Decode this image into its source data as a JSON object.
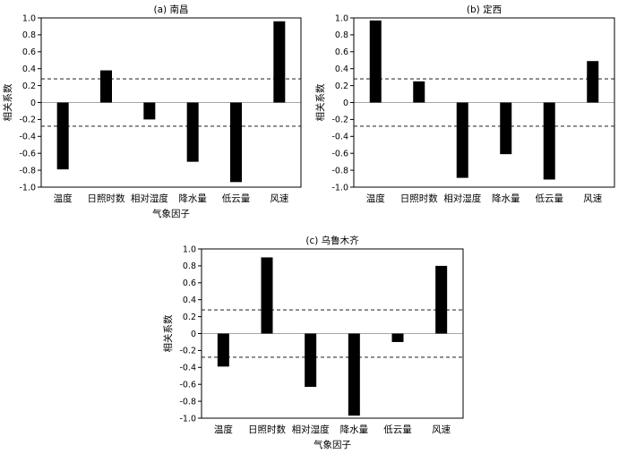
{
  "chart_data": [
    {
      "type": "bar",
      "title": "(a) 南昌",
      "xlabel": "气象因子",
      "ylabel": "相关系数",
      "categories": [
        "温度",
        "日照时数",
        "相对湿度",
        "降水量",
        "低云量",
        "风速"
      ],
      "values": [
        -0.79,
        0.38,
        -0.2,
        -0.7,
        -0.94,
        0.96
      ],
      "ylim": [
        -1.0,
        1.0
      ],
      "yticks": [
        "1.0",
        "0.8",
        "0.6",
        "0.4",
        "0.2",
        "0",
        "-0.2",
        "-0.4",
        "-0.6",
        "-0.8",
        "-1.0"
      ],
      "significance_lines": [
        0.28,
        -0.28
      ],
      "legend": "none",
      "grid": false
    },
    {
      "type": "bar",
      "title": "(b) 定西",
      "xlabel": "",
      "ylabel": "相关系数",
      "categories": [
        "温度",
        "日照时数",
        "相对湿度",
        "降水量",
        "低云量",
        "风速"
      ],
      "values": [
        0.97,
        0.25,
        -0.89,
        -0.61,
        -0.91,
        0.49
      ],
      "ylim": [
        -1.0,
        1.0
      ],
      "yticks": [
        "1.0",
        "0.8",
        "0.6",
        "0.4",
        "0.2",
        "0",
        "-0.2",
        "-0.4",
        "-0.6",
        "-0.8",
        "-1.0"
      ],
      "significance_lines": [
        0.28,
        -0.28
      ],
      "legend": "none",
      "grid": false
    },
    {
      "type": "bar",
      "title": "(c) 乌鲁木齐",
      "xlabel": "气象因子",
      "ylabel": "相关系数",
      "categories": [
        "温度",
        "日照时数",
        "相对湿度",
        "降水量",
        "低云量",
        "风速"
      ],
      "values": [
        -0.39,
        0.9,
        -0.63,
        -0.97,
        -0.1,
        0.8
      ],
      "ylim": [
        -1.0,
        1.0
      ],
      "yticks": [
        "1.0",
        "0.8",
        "0.6",
        "0.4",
        "0.2",
        "0",
        "-0.2",
        "-0.4",
        "-0.6",
        "-0.8",
        "-1.0"
      ],
      "significance_lines": [
        0.28,
        -0.28
      ],
      "legend": "none",
      "grid": false
    }
  ]
}
